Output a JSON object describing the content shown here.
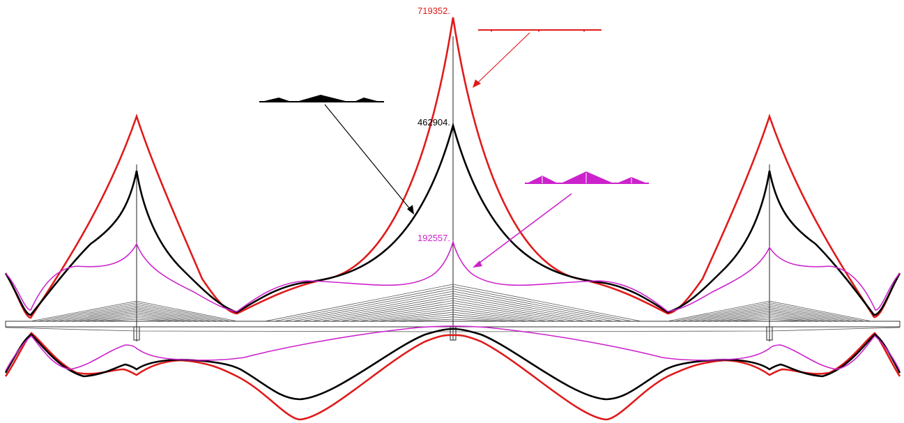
{
  "colors": {
    "case_red": "#e01a1a",
    "case_black": "#000000",
    "case_magenta": "#cc22cc",
    "structure": "#333333"
  },
  "labels": {
    "red_max": "719352.",
    "black_max": "462904.",
    "magenta_max": "192557."
  },
  "load_cases": [
    {
      "name": "",
      "color_key": "case_red",
      "peak_value": 719352
    },
    {
      "name": "",
      "color_key": "case_black",
      "peak_value": 462904
    },
    {
      "name": "",
      "color_key": "case_magenta",
      "peak_value": 192557
    }
  ]
}
